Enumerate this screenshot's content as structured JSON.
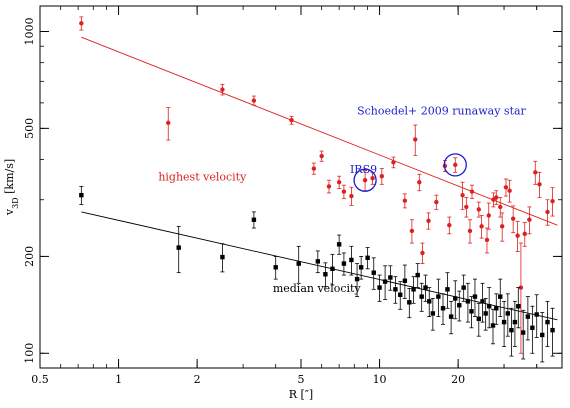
{
  "chart_data": {
    "type": "scatter",
    "title": "",
    "xlabel": "R [″]",
    "ylabel": "v3D [km/s]",
    "ylabel_main": "v",
    "ylabel_sub": "3D",
    "ylabel_unit": " [km/s]",
    "xscale": "log",
    "yscale": "log",
    "xlim": [
      0.5,
      50
    ],
    "ylim": [
      90,
      1200
    ],
    "xticks": [
      0.5,
      1,
      2,
      5,
      10,
      20
    ],
    "xtick_labels": [
      "0.5",
      "1",
      "2",
      "5",
      "10",
      "20"
    ],
    "yticks": [
      100,
      200,
      500,
      1000
    ],
    "ytick_labels": [
      "100",
      "200",
      "500",
      "1000"
    ],
    "grid": false,
    "legend": "none",
    "colors": {
      "highest": "#dd2020",
      "median": "#000000",
      "circle": "#1a1acc",
      "runaway_text": "#2020cc"
    },
    "annotations": [
      {
        "text": "highest velocity",
        "color": "#dd2020",
        "x": 1.42,
        "y": 344
      },
      {
        "text": "median velocity",
        "color": "#000000",
        "x": 3.9,
        "y": 155
      },
      {
        "text": "IRS9",
        "color": "#2020cc",
        "x": 7.7,
        "y": 363
      },
      {
        "text": "Schoedel+ 2009 runaway star",
        "color": "#2020cc",
        "x": 8.2,
        "y": 553
      }
    ],
    "circled_points": [
      {
        "name": "IRS9",
        "x": 8.8,
        "y": 345
      },
      {
        "name": "runaway star",
        "x": 19.5,
        "y": 385
      }
    ],
    "series": [
      {
        "name": "highest velocity",
        "color": "#dd2020",
        "marker": "circle",
        "fit": {
          "x": [
            0.72,
            48
          ],
          "y": [
            960,
            250
          ]
        },
        "points": [
          [
            0.72,
            1060,
            50
          ],
          [
            1.55,
            520,
            60
          ],
          [
            2.5,
            660,
            25
          ],
          [
            3.3,
            610,
            20
          ],
          [
            4.6,
            530,
            15
          ],
          [
            6.0,
            410,
            15
          ],
          [
            5.6,
            375,
            15
          ],
          [
            6.4,
            330,
            15
          ],
          [
            7.0,
            340,
            15
          ],
          [
            7.3,
            318,
            15
          ],
          [
            7.8,
            308,
            20
          ],
          [
            8.8,
            345,
            25
          ],
          [
            9.4,
            350,
            15
          ],
          [
            10.2,
            355,
            20
          ],
          [
            11.3,
            392,
            15
          ],
          [
            12.5,
            298,
            15
          ],
          [
            13.7,
            462,
            50
          ],
          [
            14.2,
            340,
            20
          ],
          [
            13.3,
            240,
            20
          ],
          [
            14.6,
            205,
            15
          ],
          [
            15.4,
            258,
            15
          ],
          [
            16.5,
            295,
            15
          ],
          [
            17.8,
            382,
            15
          ],
          [
            18.5,
            250,
            15
          ],
          [
            19.5,
            385,
            20
          ],
          [
            20.8,
            310,
            30
          ],
          [
            21.5,
            285,
            20
          ],
          [
            22.2,
            240,
            20
          ],
          [
            22.6,
            318,
            15
          ],
          [
            24.0,
            280,
            15
          ],
          [
            24.6,
            248,
            20
          ],
          [
            25.8,
            225,
            20
          ],
          [
            26.2,
            268,
            25
          ],
          [
            27.3,
            300,
            15
          ],
          [
            28.0,
            305,
            15
          ],
          [
            29.0,
            285,
            20
          ],
          [
            29.5,
            248,
            25
          ],
          [
            30.5,
            328,
            20
          ],
          [
            31.5,
            320,
            25
          ],
          [
            32.5,
            262,
            25
          ],
          [
            33.8,
            232,
            25
          ],
          [
            36.0,
            235,
            20
          ],
          [
            37.5,
            260,
            25
          ],
          [
            39.5,
            365,
            30
          ],
          [
            41.0,
            335,
            30
          ],
          [
            44.0,
            275,
            25
          ],
          [
            46.0,
            297,
            30
          ],
          [
            34.8,
            160,
            60
          ]
        ]
      },
      {
        "name": "median velocity",
        "color": "#000000",
        "marker": "square",
        "fit": {
          "x": [
            0.72,
            48
          ],
          "y": [
            275,
            127
          ]
        },
        "points": [
          [
            0.72,
            310,
            20
          ],
          [
            1.7,
            213,
            35
          ],
          [
            2.5,
            199,
            20
          ],
          [
            3.3,
            260,
            15
          ],
          [
            4.0,
            185,
            15
          ],
          [
            4.9,
            190,
            25
          ],
          [
            5.8,
            193,
            15
          ],
          [
            6.2,
            176,
            15
          ],
          [
            6.6,
            183,
            20
          ],
          [
            7.0,
            218,
            15
          ],
          [
            7.3,
            190,
            15
          ],
          [
            7.8,
            195,
            20
          ],
          [
            8.2,
            170,
            20
          ],
          [
            8.5,
            185,
            15
          ],
          [
            9.0,
            198,
            15
          ],
          [
            9.5,
            178,
            20
          ],
          [
            10.0,
            160,
            15
          ],
          [
            10.5,
            167,
            20
          ],
          [
            11.0,
            172,
            15
          ],
          [
            11.5,
            158,
            15
          ],
          [
            12.0,
            152,
            15
          ],
          [
            12.5,
            168,
            20
          ],
          [
            13.0,
            144,
            15
          ],
          [
            13.5,
            158,
            15
          ],
          [
            14.0,
            175,
            15
          ],
          [
            14.5,
            150,
            15
          ],
          [
            15.0,
            160,
            15
          ],
          [
            15.5,
            145,
            15
          ],
          [
            16.0,
            133,
            15
          ],
          [
            16.8,
            150,
            20
          ],
          [
            17.5,
            138,
            15
          ],
          [
            18.2,
            158,
            20
          ],
          [
            18.8,
            130,
            15
          ],
          [
            19.5,
            148,
            20
          ],
          [
            20.2,
            141,
            15
          ],
          [
            21.0,
            160,
            15
          ],
          [
            21.8,
            145,
            20
          ],
          [
            22.5,
            135,
            15
          ],
          [
            23.2,
            150,
            20
          ],
          [
            24.0,
            128,
            15
          ],
          [
            24.8,
            145,
            20
          ],
          [
            25.5,
            133,
            15
          ],
          [
            26.3,
            140,
            20
          ],
          [
            27.2,
            122,
            15
          ],
          [
            28.0,
            138,
            15
          ],
          [
            29.0,
            150,
            20
          ],
          [
            30.0,
            125,
            20
          ],
          [
            31.0,
            133,
            20
          ],
          [
            32.0,
            118,
            20
          ],
          [
            33.0,
            125,
            20
          ],
          [
            34.0,
            140,
            20
          ],
          [
            35.5,
            116,
            20
          ],
          [
            37.0,
            130,
            20
          ],
          [
            38.5,
            120,
            20
          ],
          [
            40.0,
            132,
            20
          ],
          [
            42.0,
            114,
            20
          ],
          [
            44.0,
            125,
            20
          ],
          [
            46.0,
            118,
            20
          ]
        ]
      }
    ]
  }
}
